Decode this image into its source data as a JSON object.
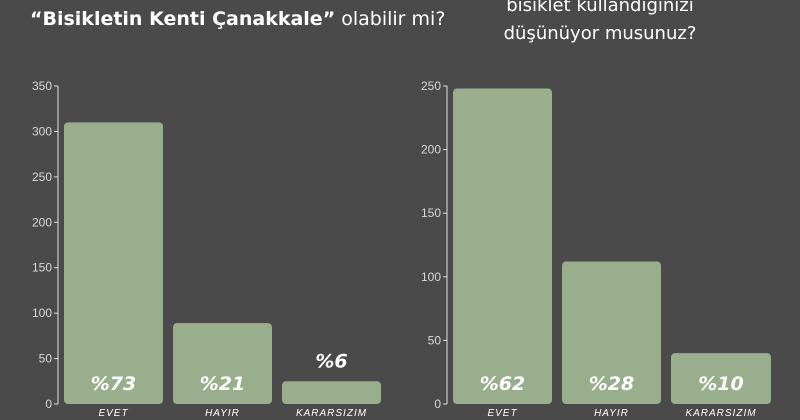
{
  "left_title": {
    "quote_text": "“Bisikletin Kenti Çanakkale”",
    "rest_text": "olabilir mi?"
  },
  "right_title": {
    "line1": "bisiklet kullandığınızı",
    "line2": "düşünüyor musunuz?"
  },
  "colors": {
    "background": "#4a4a4a",
    "bar": "#98ae8c",
    "text": "#ffffff"
  },
  "chart_data": [
    {
      "type": "bar",
      "categories": [
        "EVET",
        "HAYIR",
        "KARARSIZIM"
      ],
      "values": [
        310,
        89,
        25
      ],
      "data_labels": [
        "%73",
        "%21",
        "%6"
      ],
      "ylim": [
        0,
        350
      ],
      "yticks": [
        0,
        50,
        100,
        150,
        200,
        250,
        300,
        350
      ],
      "grid": false,
      "legend": "none"
    },
    {
      "type": "bar",
      "categories": [
        "EVET",
        "HAYIR",
        "KARARSIZIM"
      ],
      "values": [
        248,
        112,
        40
      ],
      "data_labels": [
        "%62",
        "%28",
        "%10"
      ],
      "ylim": [
        0,
        250
      ],
      "yticks": [
        0,
        50,
        100,
        150,
        200,
        250
      ],
      "grid": false,
      "legend": "none"
    }
  ]
}
